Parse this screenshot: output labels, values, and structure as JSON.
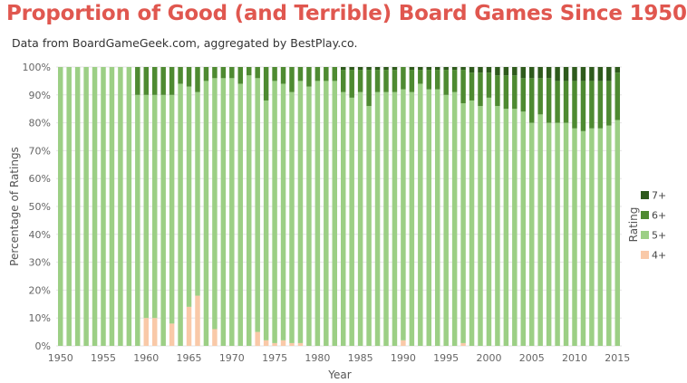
{
  "title": "Proportion of Good (and Terrible) Board Games Since 1950",
  "subtitle": "Data from BoardGameGeek.com, aggregated by BestPlay.co.",
  "colors": {
    "r7": "#2e5a1c",
    "r6": "#4e8a31",
    "r5": "#9ccf85",
    "r4": "#f9c9a8"
  },
  "chart_data": {
    "type": "bar",
    "stacked": true,
    "xlabel": "Year",
    "ylabel": "Percentage of Ratings",
    "ylim": [
      0,
      100
    ],
    "yticks": [
      "0%",
      "10%",
      "20%",
      "30%",
      "40%",
      "50%",
      "60%",
      "70%",
      "80%",
      "90%",
      "100%"
    ],
    "xticks": [
      "1950",
      "1955",
      "1960",
      "1965",
      "1970",
      "1975",
      "1980",
      "1985",
      "1990",
      "1995",
      "2000",
      "2005",
      "2010",
      "2015"
    ],
    "legend": {
      "title": "Rating",
      "position": "right",
      "entries": [
        "7+",
        "6+",
        "5+",
        "4+"
      ]
    },
    "categories": [
      1950,
      1951,
      1952,
      1953,
      1954,
      1955,
      1956,
      1957,
      1958,
      1959,
      1960,
      1961,
      1962,
      1963,
      1964,
      1965,
      1966,
      1967,
      1968,
      1969,
      1970,
      1971,
      1972,
      1973,
      1974,
      1975,
      1976,
      1977,
      1978,
      1979,
      1980,
      1981,
      1982,
      1983,
      1984,
      1985,
      1986,
      1987,
      1988,
      1989,
      1990,
      1991,
      1992,
      1993,
      1994,
      1995,
      1996,
      1997,
      1998,
      1999,
      2000,
      2001,
      2002,
      2003,
      2004,
      2005,
      2006,
      2007,
      2008,
      2009,
      2010,
      2011,
      2012,
      2013,
      2014,
      2015
    ],
    "series": [
      {
        "name": "4+",
        "values": [
          0,
          0,
          0,
          0,
          0,
          0,
          0,
          0,
          0,
          0,
          10,
          10,
          0,
          8,
          0,
          14,
          18,
          0,
          6,
          0,
          0,
          0,
          0,
          5,
          2,
          1,
          2,
          1,
          1,
          0,
          0,
          0,
          0,
          0,
          0,
          0,
          0,
          0,
          0,
          0,
          2,
          0,
          0,
          0,
          0,
          0,
          0,
          1,
          0,
          0,
          0,
          0,
          0,
          0,
          0,
          0,
          0,
          0,
          0,
          0,
          0,
          0,
          0,
          0,
          0,
          0
        ]
      },
      {
        "name": "5+",
        "values": [
          100,
          100,
          100,
          100,
          100,
          100,
          100,
          100,
          100,
          90,
          80,
          80,
          90,
          82,
          94,
          79,
          73,
          95,
          90,
          96,
          96,
          94,
          97,
          91,
          86,
          94,
          92,
          90,
          94,
          93,
          95,
          95,
          95,
          91,
          89,
          91,
          86,
          91,
          91,
          91,
          90,
          91,
          94,
          92,
          92,
          90,
          91,
          86,
          88,
          86,
          89,
          86,
          85,
          85,
          84,
          80,
          83,
          80,
          80,
          80,
          78,
          77,
          78,
          78,
          79,
          81
        ]
      },
      {
        "name": "6+",
        "values": [
          0,
          0,
          0,
          0,
          0,
          0,
          0,
          0,
          0,
          10,
          10,
          10,
          10,
          10,
          6,
          7,
          9,
          5,
          4,
          4,
          4,
          6,
          3,
          4,
          12,
          5,
          6,
          9,
          5,
          7,
          5,
          5,
          5,
          8,
          10,
          8,
          13,
          8,
          8,
          8,
          8,
          8,
          5,
          7,
          7,
          9,
          8,
          12,
          10,
          12,
          9,
          11,
          12,
          12,
          12,
          16,
          13,
          16,
          15,
          15,
          17,
          18,
          17,
          17,
          16,
          17
        ]
      },
      {
        "name": "7+",
        "values": [
          0,
          0,
          0,
          0,
          0,
          0,
          0,
          0,
          0,
          0,
          0,
          0,
          0,
          0,
          0,
          0,
          0,
          0,
          0,
          0,
          0,
          0,
          0,
          0,
          0,
          0,
          0,
          0,
          0,
          0,
          0,
          0,
          0,
          1,
          1,
          1,
          1,
          1,
          1,
          1,
          0,
          1,
          1,
          1,
          1,
          1,
          1,
          1,
          2,
          2,
          2,
          3,
          3,
          3,
          4,
          4,
          4,
          4,
          5,
          5,
          5,
          5,
          5,
          5,
          5,
          2
        ]
      }
    ]
  }
}
